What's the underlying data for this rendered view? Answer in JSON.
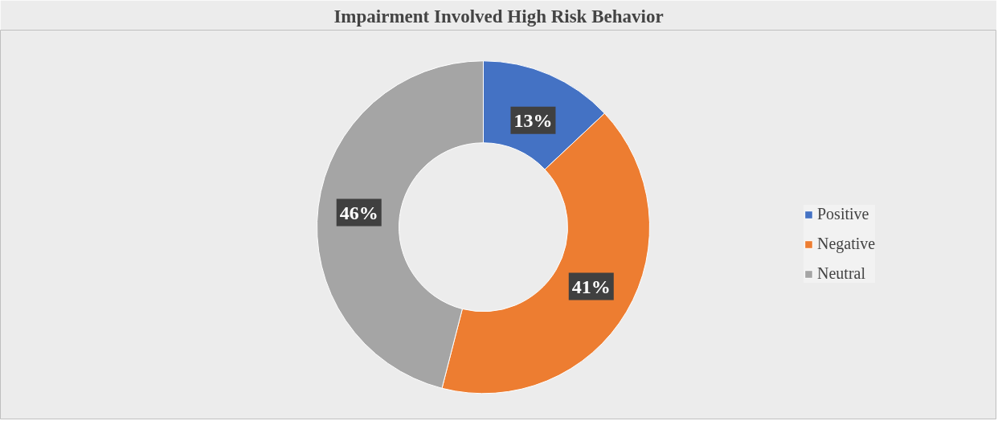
{
  "chart_data": {
    "type": "donut",
    "title": "Impairment Involved High Risk Behavior",
    "categories": [
      "Positive",
      "Negative",
      "Neutral"
    ],
    "values": [
      13,
      41,
      46
    ],
    "colors": [
      "#4472c4",
      "#ed7d31",
      "#a5a5a5"
    ],
    "value_labels": [
      "13%",
      "41%",
      "46%"
    ],
    "legend": "right"
  }
}
